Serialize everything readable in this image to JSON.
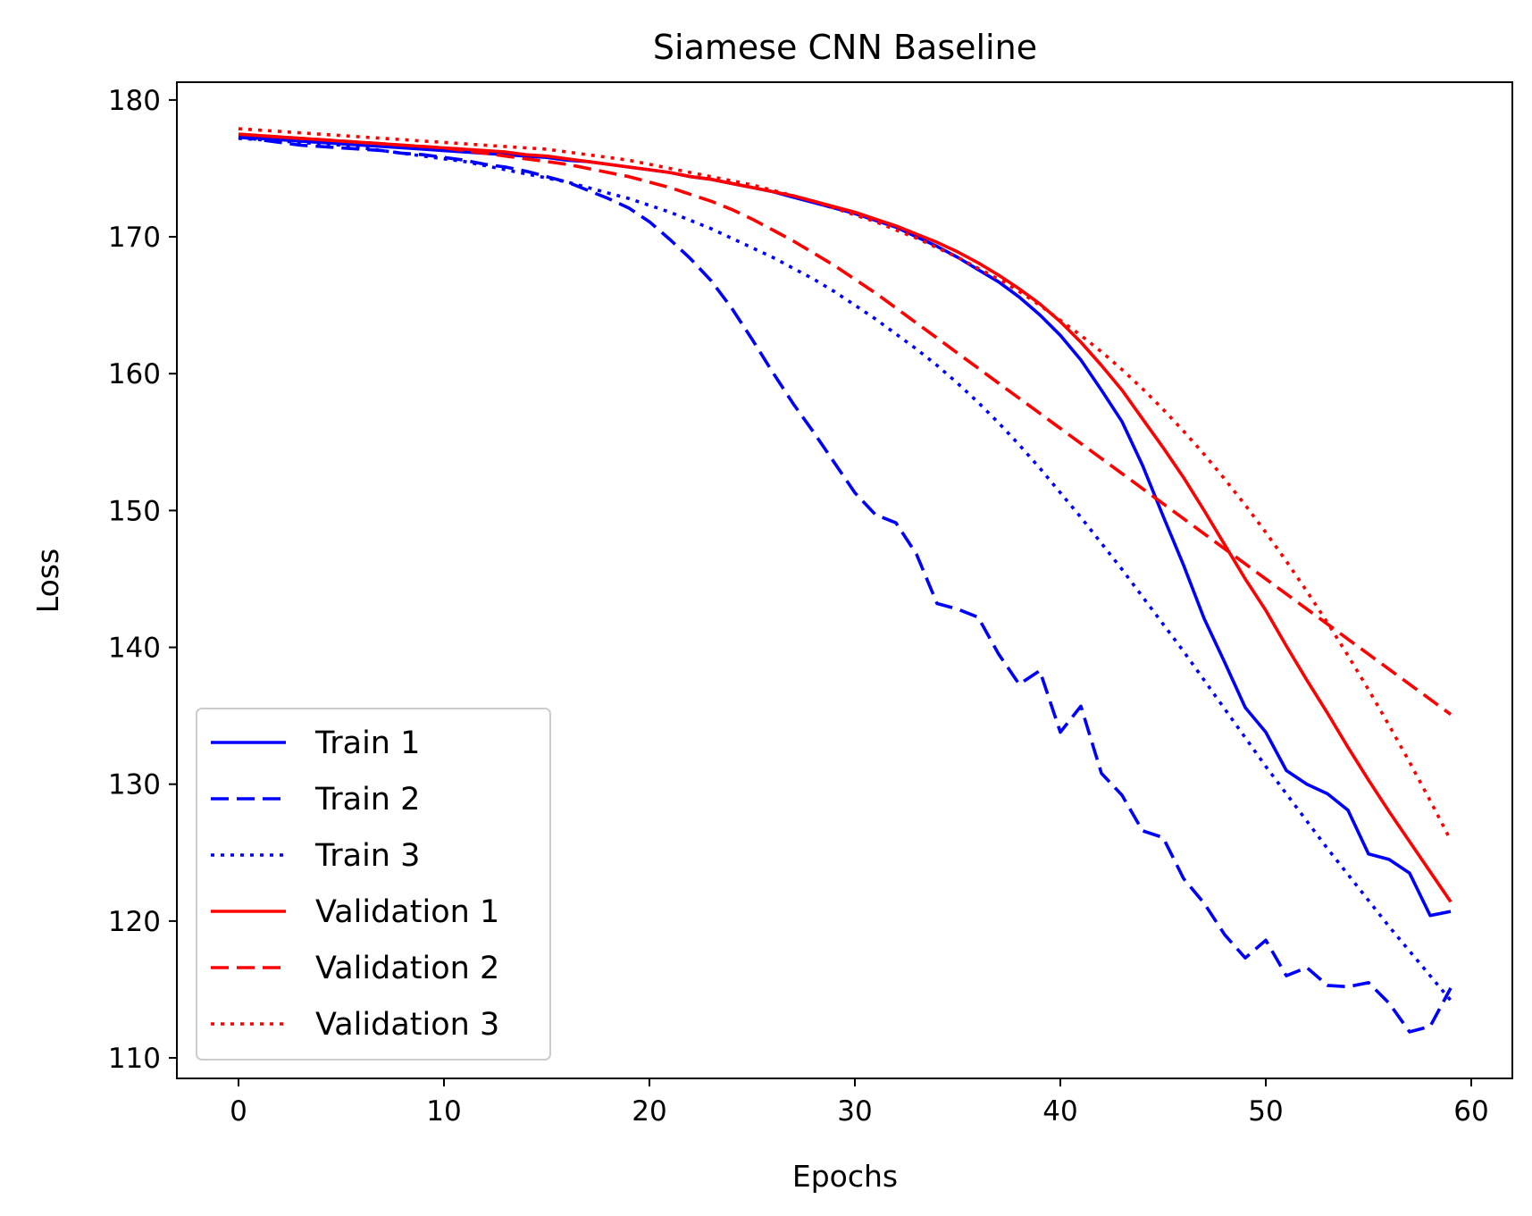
{
  "chart_data": {
    "type": "line",
    "title": "Siamese CNN Baseline",
    "xlabel": "Epochs",
    "ylabel": "Loss",
    "xlim": [
      -3,
      62
    ],
    "ylim": [
      108.5,
      181.3
    ],
    "xticks": [
      0,
      10,
      20,
      30,
      40,
      50,
      60
    ],
    "yticks": [
      110,
      120,
      130,
      140,
      150,
      160,
      170,
      180
    ],
    "grid": false,
    "legend_position": "lower-left",
    "x": [
      0,
      1,
      2,
      3,
      4,
      5,
      6,
      7,
      8,
      9,
      10,
      11,
      12,
      13,
      14,
      15,
      16,
      17,
      18,
      19,
      20,
      21,
      22,
      23,
      24,
      25,
      26,
      27,
      28,
      29,
      30,
      31,
      32,
      33,
      34,
      35,
      36,
      37,
      38,
      39,
      40,
      41,
      42,
      43,
      44,
      45,
      46,
      47,
      48,
      49,
      50,
      51,
      52,
      53,
      54,
      55,
      56,
      57,
      58,
      59
    ],
    "series": [
      {
        "name": "Train 1",
        "color": "#0000ff",
        "dash": "solid",
        "values": [
          177.3,
          177.2,
          177.1,
          177.0,
          176.9,
          176.8,
          176.7,
          176.6,
          176.5,
          176.4,
          176.3,
          176.2,
          176.1,
          176.0,
          175.9,
          175.8,
          175.6,
          175.5,
          175.3,
          175.1,
          174.9,
          174.7,
          174.4,
          174.2,
          173.9,
          173.6,
          173.3,
          172.9,
          172.5,
          172.1,
          171.7,
          171.2,
          170.7,
          170.0,
          169.3,
          168.5,
          167.6,
          166.7,
          165.6,
          164.3,
          162.8,
          161.0,
          158.8,
          156.5,
          153.3,
          149.6,
          146.0,
          142.1,
          138.9,
          135.6,
          133.8,
          131.0,
          130.0,
          129.3,
          128.1,
          124.9,
          124.5,
          123.5,
          120.4,
          120.7
        ]
      },
      {
        "name": "Train 2",
        "color": "#0000ff",
        "dash": "dashed",
        "values": [
          177.3,
          177.1,
          176.9,
          176.7,
          176.6,
          176.5,
          176.4,
          176.3,
          176.1,
          176.0,
          175.8,
          175.6,
          175.3,
          175.1,
          174.8,
          174.4,
          174.0,
          173.4,
          172.8,
          172.1,
          171.1,
          169.8,
          168.4,
          166.8,
          164.8,
          162.5,
          160.1,
          157.8,
          155.7,
          153.5,
          151.3,
          149.7,
          149.1,
          146.8,
          143.2,
          142.8,
          142.2,
          139.5,
          137.3,
          138.3,
          133.8,
          135.7,
          130.8,
          129.2,
          126.6,
          126.1,
          123.1,
          121.3,
          119.0,
          117.3,
          118.6,
          116.0,
          116.6,
          115.3,
          115.2,
          115.5,
          114.0,
          111.9,
          112.3,
          115.1
        ]
      },
      {
        "name": "Train 3",
        "color": "#0000ff",
        "dash": "dotted",
        "values": [
          177.2,
          177.1,
          177.0,
          176.9,
          176.8,
          176.7,
          176.5,
          176.3,
          176.1,
          175.9,
          175.7,
          175.5,
          175.2,
          174.9,
          174.6,
          174.3,
          174.0,
          173.6,
          173.2,
          172.8,
          172.3,
          171.8,
          171.2,
          170.6,
          169.9,
          169.2,
          168.5,
          167.7,
          166.9,
          166.0,
          165.0,
          164.0,
          162.9,
          161.8,
          160.6,
          159.3,
          157.9,
          156.4,
          154.8,
          153.1,
          151.3,
          149.5,
          147.6,
          145.7,
          143.7,
          141.7,
          139.7,
          137.6,
          135.5,
          133.4,
          131.3,
          129.3,
          127.3,
          125.3,
          123.4,
          121.5,
          119.6,
          117.8,
          116.0,
          114.2
        ]
      },
      {
        "name": "Validation 1",
        "color": "#ff0000",
        "dash": "solid",
        "values": [
          177.5,
          177.4,
          177.3,
          177.2,
          177.1,
          177.0,
          176.9,
          176.8,
          176.7,
          176.6,
          176.5,
          176.4,
          176.3,
          176.2,
          176.0,
          175.9,
          175.7,
          175.5,
          175.3,
          175.1,
          174.9,
          174.7,
          174.4,
          174.2,
          173.9,
          173.6,
          173.3,
          173.0,
          172.6,
          172.2,
          171.8,
          171.3,
          170.8,
          170.2,
          169.6,
          168.9,
          168.1,
          167.2,
          166.2,
          165.1,
          163.8,
          162.3,
          160.6,
          158.8,
          156.7,
          154.6,
          152.4,
          150.0,
          147.5,
          145.0,
          142.7,
          140.1,
          137.6,
          135.2,
          132.7,
          130.3,
          128.0,
          125.8,
          123.6,
          121.4
        ]
      },
      {
        "name": "Validation 2",
        "color": "#ff0000",
        "dash": "dashed",
        "values": [
          177.5,
          177.4,
          177.3,
          177.2,
          177.1,
          177.0,
          176.9,
          176.8,
          176.7,
          176.6,
          176.5,
          176.3,
          176.1,
          175.9,
          175.7,
          175.5,
          175.3,
          175.0,
          174.7,
          174.4,
          174.0,
          173.6,
          173.1,
          172.6,
          172.0,
          171.3,
          170.5,
          169.7,
          168.8,
          167.9,
          166.9,
          165.9,
          164.8,
          163.7,
          162.6,
          161.5,
          160.4,
          159.3,
          158.2,
          157.1,
          156.0,
          154.9,
          153.8,
          152.7,
          151.6,
          150.5,
          149.4,
          148.3,
          147.2,
          146.1,
          145.0,
          143.9,
          142.8,
          141.7,
          140.6,
          139.5,
          138.4,
          137.3,
          136.2,
          135.1
        ]
      },
      {
        "name": "Validation 3",
        "color": "#ff0000",
        "dash": "dotted",
        "values": [
          177.9,
          177.8,
          177.7,
          177.6,
          177.5,
          177.4,
          177.3,
          177.2,
          177.1,
          177.0,
          176.9,
          176.8,
          176.7,
          176.6,
          176.5,
          176.4,
          176.2,
          176.0,
          175.8,
          175.6,
          175.3,
          175.0,
          174.7,
          174.4,
          174.1,
          173.8,
          173.4,
          173.0,
          172.6,
          172.1,
          171.6,
          171.1,
          170.5,
          169.9,
          169.2,
          168.5,
          167.7,
          166.9,
          166.0,
          165.0,
          163.9,
          162.8,
          161.6,
          160.3,
          158.9,
          157.4,
          155.8,
          154.1,
          152.3,
          150.4,
          148.4,
          146.3,
          144.1,
          141.8,
          139.4,
          136.9,
          134.3,
          131.6,
          128.8,
          125.9
        ]
      }
    ]
  }
}
